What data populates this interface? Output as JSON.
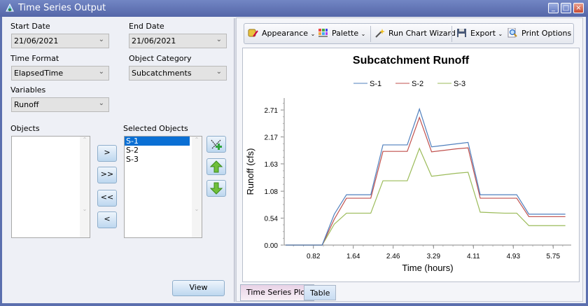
{
  "window": {
    "title": "Time Series Output",
    "min": "_",
    "max": "□",
    "close": "×"
  },
  "left": {
    "start_date": {
      "label": "Start Date",
      "value": "21/06/2021"
    },
    "end_date": {
      "label": "End Date",
      "value": "21/06/2021"
    },
    "time_format": {
      "label": "Time Format",
      "value": "ElapsedTime"
    },
    "object_category": {
      "label": "Object Category",
      "value": "Subcatchments"
    },
    "variables": {
      "label": "Variables",
      "value": "Runoff"
    },
    "objects": {
      "label": "Objects",
      "items": []
    },
    "selected_objects": {
      "label": "Selected Objects",
      "items": [
        "S-1",
        "S-2",
        "S-3"
      ],
      "selected": "S-1"
    },
    "move_buttons": [
      ">",
      ">>",
      "<<",
      "<"
    ],
    "view_label": "View"
  },
  "toolbar": {
    "appearance": "Appearance",
    "palette": "Palette",
    "wizard": "Run Chart Wizard",
    "export": "Export",
    "print": "Print Options"
  },
  "tabs": [
    {
      "label": "Time Series Plot",
      "active": true
    },
    {
      "label": "Table",
      "active": false
    }
  ],
  "chart_data": {
    "type": "line",
    "title": "Subcatchment Runoff",
    "xlabel": "Time (hours)",
    "ylabel": "Runoff (cfs)",
    "xticks": [
      "0.82",
      "1.64",
      "2.46",
      "3.29",
      "4.11",
      "4.93",
      "5.75"
    ],
    "yticks": [
      "0.00",
      "0.54",
      "1.08",
      "1.63",
      "2.17",
      "2.71"
    ],
    "xlim": [
      0.22,
      6.12
    ],
    "ylim": [
      0,
      2.95
    ],
    "legend": "top-center",
    "grid": false,
    "x": [
      0.25,
      0.5,
      0.75,
      1.0,
      1.25,
      1.5,
      1.75,
      2.0,
      2.25,
      2.5,
      2.75,
      3.0,
      3.25,
      3.5,
      3.75,
      4.0,
      4.25,
      4.5,
      4.75,
      5.0,
      5.25,
      5.5,
      5.75,
      6.0
    ],
    "series": [
      {
        "name": "S-1",
        "color": "#4f7fbd",
        "values": [
          0,
          0,
          0,
          0,
          0.62,
          1.01,
          1.01,
          1.01,
          2.01,
          2.01,
          2.01,
          2.73,
          1.97,
          2.0,
          2.03,
          2.06,
          1.01,
          1.01,
          1.01,
          1.01,
          0.62,
          0.62,
          0.62,
          0.62
        ]
      },
      {
        "name": "S-2",
        "color": "#c0504d",
        "values": [
          0,
          0,
          0,
          0,
          0.52,
          0.94,
          0.94,
          0.94,
          1.88,
          1.88,
          1.88,
          2.56,
          1.87,
          1.9,
          1.93,
          1.95,
          0.94,
          0.94,
          0.94,
          0.94,
          0.57,
          0.57,
          0.57,
          0.57
        ]
      },
      {
        "name": "S-3",
        "color": "#9bbb59",
        "values": [
          0,
          0,
          0,
          0,
          0.42,
          0.64,
          0.64,
          0.64,
          1.29,
          1.29,
          1.29,
          1.94,
          1.38,
          1.41,
          1.44,
          1.46,
          0.66,
          0.65,
          0.64,
          0.64,
          0.39,
          0.39,
          0.39,
          0.39
        ]
      }
    ]
  }
}
